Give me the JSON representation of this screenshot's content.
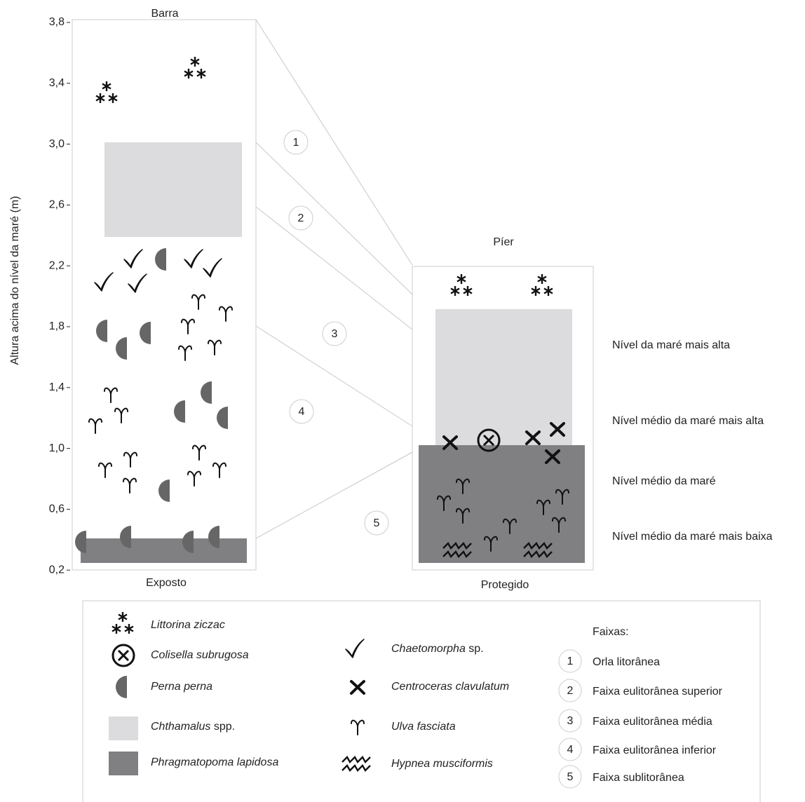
{
  "axis": {
    "label": "Altura acima do nível da maré (m)",
    "ticks": [
      "3,8",
      "3,4",
      "3,0",
      "2,6",
      "2,2",
      "1,8",
      "1,4",
      "1,0",
      "0,6",
      "0,2"
    ]
  },
  "panels": [
    {
      "title": "Barra",
      "caption": "Exposto"
    },
    {
      "title": "Píer",
      "caption": "Protegido"
    }
  ],
  "zones": [
    "1",
    "2",
    "3",
    "4",
    "5"
  ],
  "levels": [
    "Nível da maré mais alta",
    "Nível médio da maré mais alta",
    "Nível médio da maré",
    "Nível médio da maré mais baixa"
  ],
  "legend": {
    "species": [
      {
        "name": "Littorina ziczac"
      },
      {
        "name": "Colisella subrugosa"
      },
      {
        "name": "Perna perna"
      },
      {
        "name": "Chthamalus",
        "suffix": "spp."
      },
      {
        "name": "Phragmatopoma lapidosa"
      },
      {
        "name": "Chaetomorpha",
        "suffix": "sp."
      },
      {
        "name": "Centroceras clavulatum"
      },
      {
        "name": "Ulva fasciata"
      },
      {
        "name": "Hypnea musciformis"
      }
    ],
    "bands_title": "Faixas:",
    "bands": [
      {
        "number": "1",
        "label": "Orla litorânea"
      },
      {
        "number": "2",
        "label": "Faixa eulitorânea superior"
      },
      {
        "number": "3",
        "label": "Faixa eulitorânea média"
      },
      {
        "number": "4",
        "label": "Faixa eulitorânea inferior"
      },
      {
        "number": "5",
        "label": "Faixa sublitorânea"
      }
    ]
  }
}
